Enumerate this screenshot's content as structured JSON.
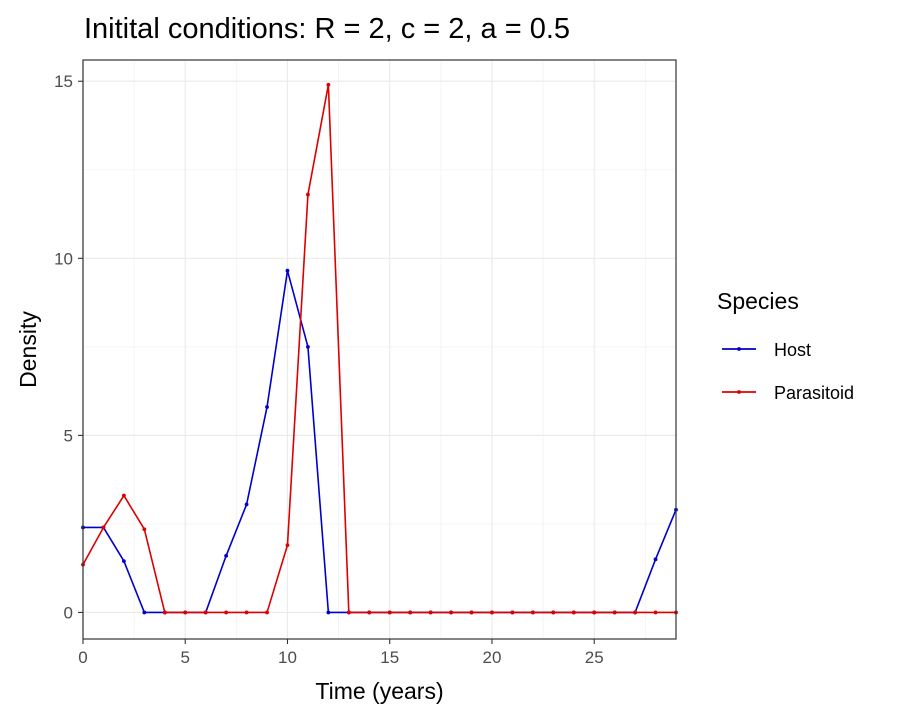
{
  "chart_data": {
    "type": "line",
    "title": "Initital conditions: R = 2, c = 2, a = 0.5",
    "xlabel": "Time (years)",
    "ylabel": "Density",
    "xlim": [
      0,
      29
    ],
    "ylim": [
      -0.75,
      15.6
    ],
    "xticks": [
      0,
      5,
      10,
      15,
      20,
      25
    ],
    "yticks": [
      0,
      5,
      10,
      15
    ],
    "grid": true,
    "legend": {
      "title": "Species",
      "position": "right"
    },
    "x": [
      0,
      1,
      2,
      3,
      4,
      5,
      6,
      7,
      8,
      9,
      10,
      11,
      12,
      13,
      14,
      15,
      16,
      17,
      18,
      19,
      20,
      21,
      22,
      23,
      24,
      25,
      26,
      27,
      28,
      29
    ],
    "series": [
      {
        "name": "Host",
        "color": "#0000cc",
        "values": [
          2.4,
          2.4,
          1.45,
          0,
          0,
          0,
          0,
          1.6,
          3.05,
          5.8,
          9.65,
          7.5,
          0,
          0,
          0,
          0,
          0,
          0,
          0,
          0,
          0,
          0,
          0,
          0,
          0,
          0,
          0,
          0,
          1.5,
          2.9
        ]
      },
      {
        "name": "Parasitoid",
        "color": "#dd0000",
        "values": [
          1.35,
          2.4,
          3.3,
          2.35,
          0,
          0,
          0,
          0,
          0,
          0,
          1.9,
          11.8,
          14.9,
          0,
          0,
          0,
          0,
          0,
          0,
          0,
          0,
          0,
          0,
          0,
          0,
          0,
          0,
          0,
          0,
          0
        ]
      }
    ]
  }
}
